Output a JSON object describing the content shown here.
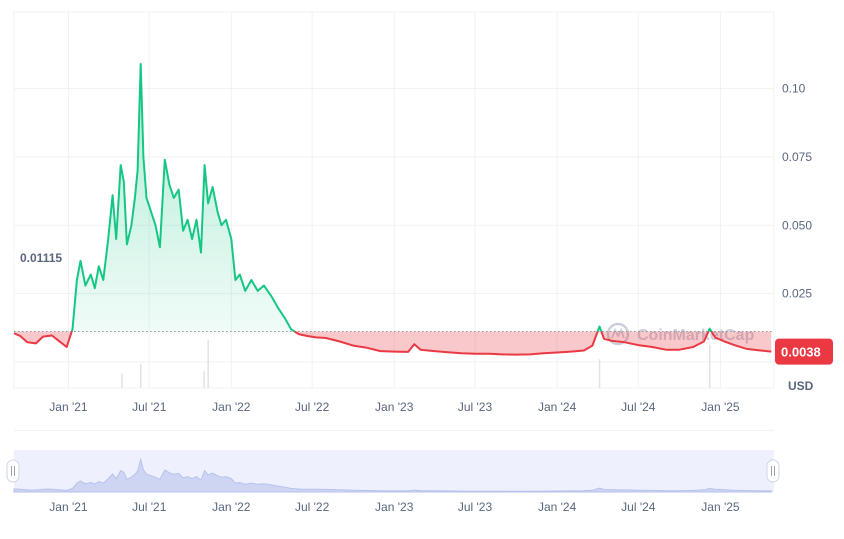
{
  "chart_data": {
    "type": "area",
    "unit_label": "USD",
    "baseline": {
      "value": 0.01115,
      "label": "0.01115"
    },
    "current_price": {
      "value": 0.0038,
      "label": "0.0038"
    },
    "colors": {
      "up": "#16c784",
      "down": "#ea3943",
      "grid": "#eff2f5",
      "nav_fill": "#e8edfc"
    },
    "y_ticks": [
      {
        "value": 0.025,
        "label": "0.025"
      },
      {
        "value": 0.05,
        "label": "0.050"
      },
      {
        "value": 0.075,
        "label": "0.075"
      },
      {
        "value": 0.1,
        "label": "0.10"
      }
    ],
    "x_ticks": [
      {
        "date": "2021-01-01",
        "label": "Jan '21"
      },
      {
        "date": "2021-07-01",
        "label": "Jul '21"
      },
      {
        "date": "2022-01-01",
        "label": "Jan '22"
      },
      {
        "date": "2022-07-01",
        "label": "Jul '22"
      },
      {
        "date": "2023-01-01",
        "label": "Jan '23"
      },
      {
        "date": "2023-07-01",
        "label": "Jul '23"
      },
      {
        "date": "2024-01-01",
        "label": "Jan '24"
      },
      {
        "date": "2024-07-01",
        "label": "Jul '24"
      },
      {
        "date": "2025-01-01",
        "label": "Jan '25"
      }
    ],
    "x_range": [
      "2020-09-01",
      "2025-05-01"
    ],
    "y_range": [
      -0.0095,
      0.128
    ],
    "series": [
      {
        "points": [
          [
            "2020-09-01",
            0.0105
          ],
          [
            "2020-09-15",
            0.0095
          ],
          [
            "2020-10-01",
            0.0072
          ],
          [
            "2020-10-20",
            0.0068
          ],
          [
            "2020-11-05",
            0.0093
          ],
          [
            "2020-11-25",
            0.0097
          ],
          [
            "2020-12-10",
            0.0078
          ],
          [
            "2020-12-28",
            0.0055
          ],
          [
            "2021-01-10",
            0.012
          ],
          [
            "2021-01-20",
            0.03
          ],
          [
            "2021-01-28",
            0.037
          ],
          [
            "2021-02-08",
            0.028
          ],
          [
            "2021-02-20",
            0.032
          ],
          [
            "2021-03-01",
            0.027
          ],
          [
            "2021-03-10",
            0.035
          ],
          [
            "2021-03-20",
            0.03
          ],
          [
            "2021-03-31",
            0.045
          ],
          [
            "2021-04-10",
            0.061
          ],
          [
            "2021-04-18",
            0.045
          ],
          [
            "2021-04-28",
            0.072
          ],
          [
            "2021-05-05",
            0.066
          ],
          [
            "2021-05-12",
            0.043
          ],
          [
            "2021-05-22",
            0.05
          ],
          [
            "2021-05-30",
            0.06
          ],
          [
            "2021-06-05",
            0.07
          ],
          [
            "2021-06-12",
            0.109
          ],
          [
            "2021-06-18",
            0.075
          ],
          [
            "2021-06-25",
            0.06
          ],
          [
            "2021-07-05",
            0.055
          ],
          [
            "2021-07-15",
            0.05
          ],
          [
            "2021-07-25",
            0.042
          ],
          [
            "2021-08-05",
            0.074
          ],
          [
            "2021-08-15",
            0.065
          ],
          [
            "2021-08-25",
            0.06
          ],
          [
            "2021-09-05",
            0.063
          ],
          [
            "2021-09-15",
            0.048
          ],
          [
            "2021-09-25",
            0.052
          ],
          [
            "2021-10-05",
            0.045
          ],
          [
            "2021-10-15",
            0.052
          ],
          [
            "2021-10-25",
            0.04
          ],
          [
            "2021-11-02",
            0.072
          ],
          [
            "2021-11-10",
            0.058
          ],
          [
            "2021-11-20",
            0.064
          ],
          [
            "2021-12-01",
            0.055
          ],
          [
            "2021-12-10",
            0.05
          ],
          [
            "2021-12-20",
            0.052
          ],
          [
            "2022-01-01",
            0.045
          ],
          [
            "2022-01-10",
            0.03
          ],
          [
            "2022-01-20",
            0.032
          ],
          [
            "2022-02-01",
            0.026
          ],
          [
            "2022-02-15",
            0.03
          ],
          [
            "2022-03-01",
            0.026
          ],
          [
            "2022-03-15",
            0.028
          ],
          [
            "2022-04-01",
            0.024
          ],
          [
            "2022-04-15",
            0.02
          ],
          [
            "2022-05-01",
            0.016
          ],
          [
            "2022-05-15",
            0.012
          ],
          [
            "2022-06-01",
            0.0102
          ],
          [
            "2022-06-20",
            0.0095
          ],
          [
            "2022-07-10",
            0.009
          ],
          [
            "2022-08-01",
            0.0088
          ],
          [
            "2022-09-01",
            0.0075
          ],
          [
            "2022-10-01",
            0.006
          ],
          [
            "2022-11-01",
            0.0052
          ],
          [
            "2022-12-01",
            0.004
          ],
          [
            "2023-01-01",
            0.0038
          ],
          [
            "2023-02-01",
            0.0037
          ],
          [
            "2023-02-15",
            0.0065
          ],
          [
            "2023-03-01",
            0.0045
          ],
          [
            "2023-04-01",
            0.004
          ],
          [
            "2023-05-01",
            0.0036
          ],
          [
            "2023-06-01",
            0.0032
          ],
          [
            "2023-07-01",
            0.003
          ],
          [
            "2023-08-01",
            0.003
          ],
          [
            "2023-09-01",
            0.0028
          ],
          [
            "2023-10-01",
            0.0027
          ],
          [
            "2023-11-01",
            0.0028
          ],
          [
            "2023-12-01",
            0.0032
          ],
          [
            "2024-01-01",
            0.0035
          ],
          [
            "2024-02-01",
            0.0038
          ],
          [
            "2024-03-01",
            0.0042
          ],
          [
            "2024-03-20",
            0.006
          ],
          [
            "2024-04-05",
            0.013
          ],
          [
            "2024-04-15",
            0.0085
          ],
          [
            "2024-05-01",
            0.0078
          ],
          [
            "2024-06-01",
            0.0072
          ],
          [
            "2024-07-01",
            0.0062
          ],
          [
            "2024-08-01",
            0.0055
          ],
          [
            "2024-09-01",
            0.0045
          ],
          [
            "2024-10-01",
            0.0045
          ],
          [
            "2024-11-01",
            0.0055
          ],
          [
            "2024-11-25",
            0.0075
          ],
          [
            "2024-12-08",
            0.0122
          ],
          [
            "2024-12-20",
            0.009
          ],
          [
            "2025-01-10",
            0.0075
          ],
          [
            "2025-02-01",
            0.0062
          ],
          [
            "2025-03-01",
            0.0048
          ],
          [
            "2025-04-01",
            0.0042
          ],
          [
            "2025-04-25",
            0.0038
          ]
        ]
      }
    ],
    "volume": [
      [
        "2021-05-01",
        0.3
      ],
      [
        "2021-06-12",
        0.5
      ],
      [
        "2021-11-01",
        0.35
      ],
      [
        "2021-11-10",
        1.0
      ],
      [
        "2024-04-05",
        0.6
      ],
      [
        "2024-12-08",
        0.9
      ]
    ],
    "watermark": "CoinMarketCap"
  }
}
